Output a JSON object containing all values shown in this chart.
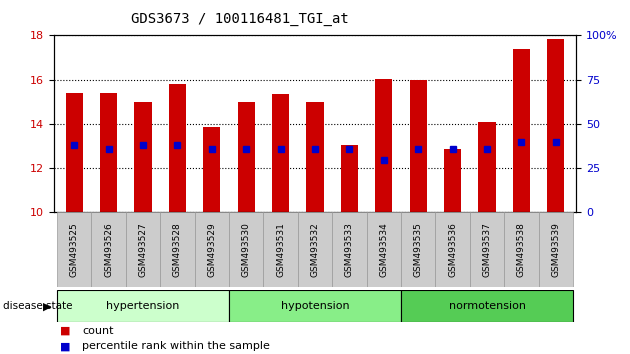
{
  "title": "GDS3673 / 100116481_TGI_at",
  "samples": [
    "GSM493525",
    "GSM493526",
    "GSM493527",
    "GSM493528",
    "GSM493529",
    "GSM493530",
    "GSM493531",
    "GSM493532",
    "GSM493533",
    "GSM493534",
    "GSM493535",
    "GSM493536",
    "GSM493537",
    "GSM493538",
    "GSM493539"
  ],
  "bar_tops": [
    15.4,
    15.4,
    15.0,
    15.8,
    13.85,
    15.0,
    15.35,
    15.0,
    13.05,
    16.05,
    16.0,
    12.85,
    14.1,
    17.4,
    17.85
  ],
  "dot_values": [
    13.05,
    12.85,
    13.05,
    13.05,
    12.85,
    12.85,
    12.85,
    12.85,
    12.85,
    12.35,
    12.85,
    12.85,
    12.85,
    13.2,
    13.2
  ],
  "bar_bottom": 10.0,
  "ylim": [
    10,
    18
  ],
  "yticks_left": [
    10,
    12,
    14,
    16,
    18
  ],
  "yticks_right": [
    0,
    25,
    50,
    75,
    100
  ],
  "groups": [
    {
      "label": "hypertension",
      "start": 0,
      "end": 5,
      "color": "#ccffcc"
    },
    {
      "label": "hypotension",
      "start": 5,
      "end": 10,
      "color": "#88ee88"
    },
    {
      "label": "normotension",
      "start": 10,
      "end": 15,
      "color": "#55cc55"
    }
  ],
  "bar_color": "#cc0000",
  "dot_color": "#0000cc",
  "bar_width": 0.5,
  "tick_label_color_left": "#cc0000",
  "tick_label_color_right": "#0000cc",
  "bg_color": "#ffffff",
  "plot_bg_color": "#ffffff",
  "grid_color": "#000000",
  "sample_bg_color": "#cccccc",
  "disease_label": "disease state",
  "legend_items": [
    {
      "label": "count",
      "color": "#cc0000"
    },
    {
      "label": "percentile rank within the sample",
      "color": "#0000cc"
    }
  ]
}
